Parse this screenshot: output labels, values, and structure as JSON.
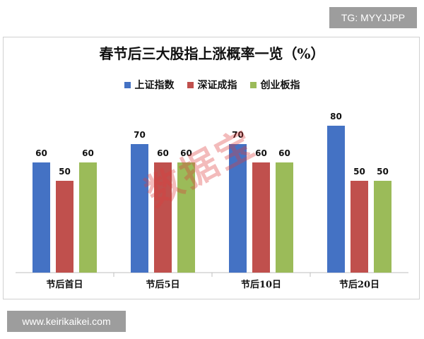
{
  "badge_text": "TG: MYYJJPP",
  "site_text": "www.keirikaikei.com",
  "watermark_text": "数据宝",
  "colors": {
    "s0": "#4472c4",
    "s1": "#c0504d",
    "s2": "#9bbb59"
  },
  "chart_data": {
    "type": "bar",
    "title": "春节后三大股指上涨概率一览（%）",
    "categories": [
      "节后首日",
      "节后5日",
      "节后10日",
      "节后20日"
    ],
    "series": [
      {
        "name": "上证指数",
        "values": [
          60,
          70,
          70,
          80
        ]
      },
      {
        "name": "深证成指",
        "values": [
          50,
          60,
          60,
          50
        ]
      },
      {
        "name": "创业板指",
        "values": [
          60,
          60,
          60,
          50
        ]
      }
    ],
    "ylim": [
      0,
      100
    ],
    "grid": false,
    "legend_position": "top"
  }
}
